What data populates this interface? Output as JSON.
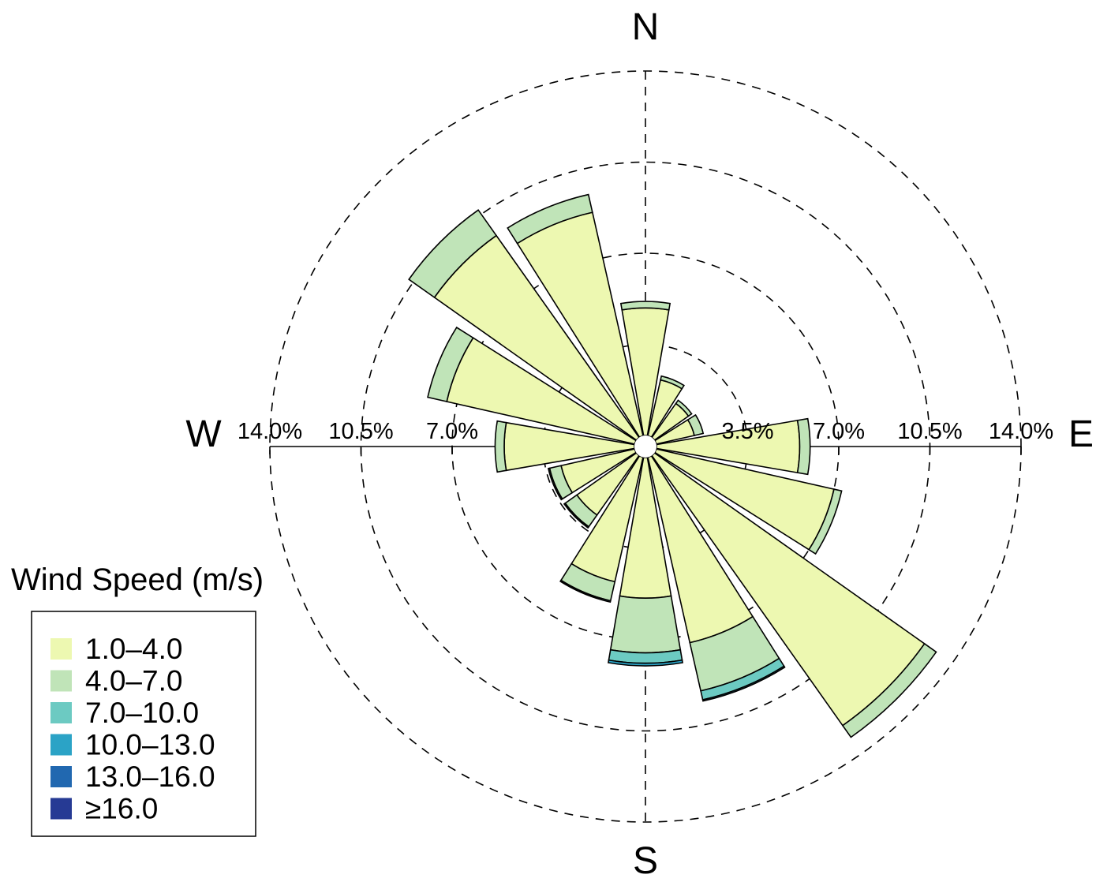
{
  "chart_data": {
    "type": "windrose",
    "directions": [
      "N",
      "NNE",
      "NE",
      "ENE",
      "E",
      "ESE",
      "SE",
      "SSE",
      "S",
      "SSW",
      "SW",
      "WSW",
      "W",
      "WNW",
      "NW",
      "NNW"
    ],
    "direction_labels": {
      "north": "N",
      "east": "E",
      "south": "S",
      "west": "W"
    },
    "radial_axis": {
      "unit": "%",
      "max": 14.0,
      "ticks": [
        3.5,
        7.0,
        10.5,
        14.0
      ],
      "tick_labels_east": [
        "3.5%",
        "7.0%",
        "10.5%",
        "14.0%"
      ],
      "tick_labels_west": [
        "14.0%",
        "10.5%",
        "7.0%"
      ],
      "grid": "dashed circles"
    },
    "legend": {
      "title": "Wind Speed (m/s)",
      "placement": "bottom-left",
      "items": [
        {
          "label": "1.0–4.0",
          "color": "#edf8b1"
        },
        {
          "label": "4.0–7.0",
          "color": "#c0e4b8"
        },
        {
          "label": "7.0–10.0",
          "color": "#6ccac2"
        },
        {
          "label": "10.0–13.0",
          "color": "#2ba3c6"
        },
        {
          "label": "13.0–16.0",
          "color": "#2168b0"
        },
        {
          "label": "≥16.0",
          "color": "#263a94"
        }
      ]
    },
    "series": [
      {
        "name": "1.0–4.0",
        "values": [
          4.9,
          2.2,
          1.6,
          1.5,
          5.5,
          7.0,
          12.7,
          7.3,
          5.4,
          4.9,
          2.8,
          2.9,
          5.0,
          7.4,
          9.5,
          8.8
        ]
      },
      {
        "name": "4.0–7.0",
        "values": [
          0.25,
          0.15,
          0.15,
          0.35,
          0.4,
          0.3,
          0.55,
          1.9,
          2.1,
          0.75,
          0.55,
          0.45,
          0.35,
          0.75,
          1.2,
          0.7
        ]
      },
      {
        "name": "7.0–10.0",
        "values": [
          0.0,
          0.0,
          0.0,
          0.0,
          0.0,
          0.0,
          0.0,
          0.35,
          0.4,
          0.05,
          0.05,
          0.05,
          0.0,
          0.0,
          0.0,
          0.0
        ]
      },
      {
        "name": "10.0–13.0",
        "values": [
          0.0,
          0.0,
          0.0,
          0.0,
          0.0,
          0.0,
          0.0,
          0.05,
          0.1,
          0.0,
          0.0,
          0.0,
          0.0,
          0.0,
          0.0,
          0.0
        ]
      },
      {
        "name": "13.0–16.0",
        "values": [
          0.0,
          0.0,
          0.0,
          0.0,
          0.0,
          0.0,
          0.0,
          0.0,
          0.0,
          0.0,
          0.0,
          0.0,
          0.0,
          0.0,
          0.0,
          0.0
        ]
      },
      {
        "name": "≥16.0",
        "values": [
          0.0,
          0.0,
          0.0,
          0.0,
          0.0,
          0.0,
          0.0,
          0.0,
          0.0,
          0.0,
          0.0,
          0.0,
          0.0,
          0.0,
          0.0,
          0.0
        ]
      }
    ]
  }
}
